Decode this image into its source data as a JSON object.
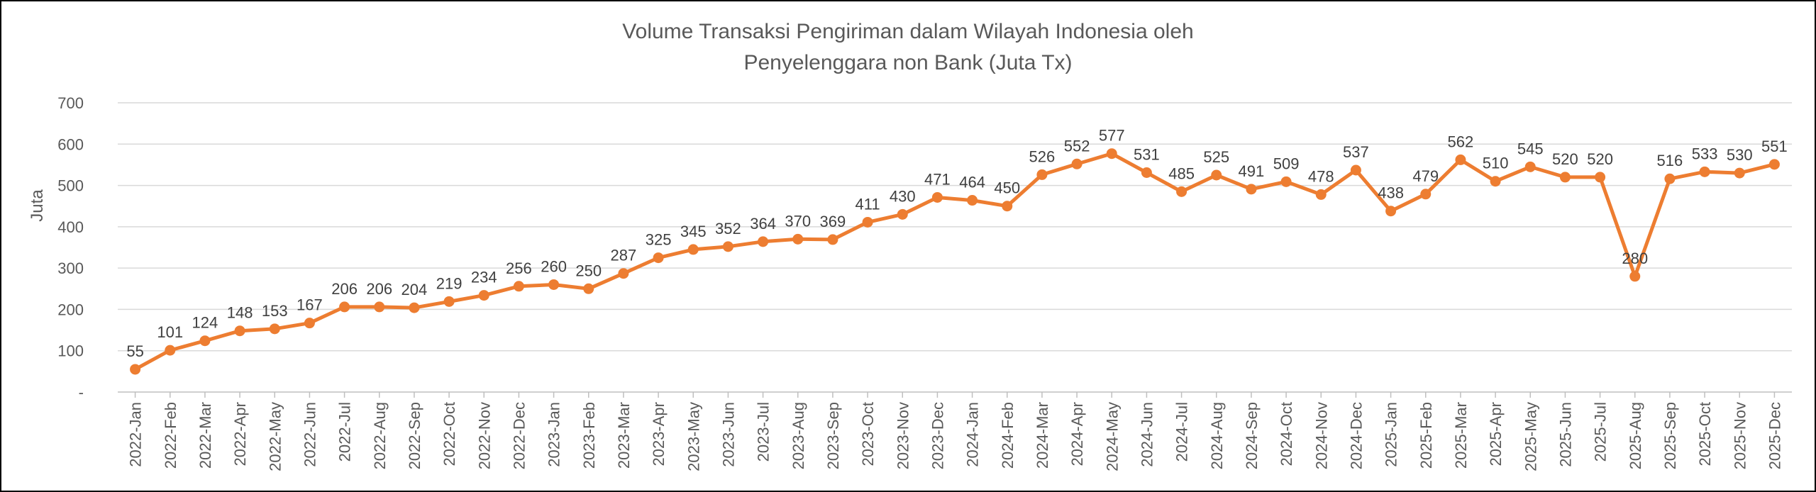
{
  "chart_data": {
    "type": "line",
    "title_lines": [
      "Volume Transaksi Pengiriman dalam Wilayah Indonesia oleh",
      "Penyelenggara non Bank (Juta Tx)"
    ],
    "ylabel": "Juta",
    "ylim": [
      0,
      700
    ],
    "yticks": [
      0,
      100,
      200,
      300,
      400,
      500,
      600,
      700
    ],
    "ytick_labels": [
      "-",
      "100",
      "200",
      "300",
      "400",
      "500",
      "600",
      "700"
    ],
    "grid": true,
    "legend": "none",
    "line_color": "#ED7D31",
    "categories": [
      "2022-Jan",
      "2022-Feb",
      "2022-Mar",
      "2022-Apr",
      "2022-May",
      "2022-Jun",
      "2022-Jul",
      "2022-Aug",
      "2022-Sep",
      "2022-Oct",
      "2022-Nov",
      "2022-Dec",
      "2023-Jan",
      "2023-Feb",
      "2023-Mar",
      "2023-Apr",
      "2023-May",
      "2023-Jun",
      "2023-Jul",
      "2023-Aug",
      "2023-Sep",
      "2023-Oct",
      "2023-Nov",
      "2023-Dec",
      "2024-Jan",
      "2024-Feb",
      "2024-Mar",
      "2024-Apr",
      "2024-May",
      "2024-Jun",
      "2024-Jul",
      "2024-Aug",
      "2024-Sep",
      "2024-Oct",
      "2024-Nov",
      "2024-Dec",
      "2025-Jan",
      "2025-Feb",
      "2025-Mar",
      "2025-Apr",
      "2025-May",
      "2025-Jun",
      "2025-Jul",
      "2025-Aug",
      "2025-Sep",
      "2025-Oct",
      "2025-Nov",
      "2025-Dec"
    ],
    "values": [
      55,
      101,
      124,
      148,
      153,
      167,
      206,
      206,
      204,
      219,
      234,
      256,
      260,
      250,
      287,
      325,
      345,
      352,
      364,
      370,
      369,
      411,
      430,
      471,
      464,
      450,
      526,
      552,
      577,
      531,
      485,
      525,
      491,
      509,
      478,
      537,
      438,
      479,
      562,
      510,
      545,
      520,
      520,
      280,
      516,
      533,
      530,
      551
    ]
  }
}
